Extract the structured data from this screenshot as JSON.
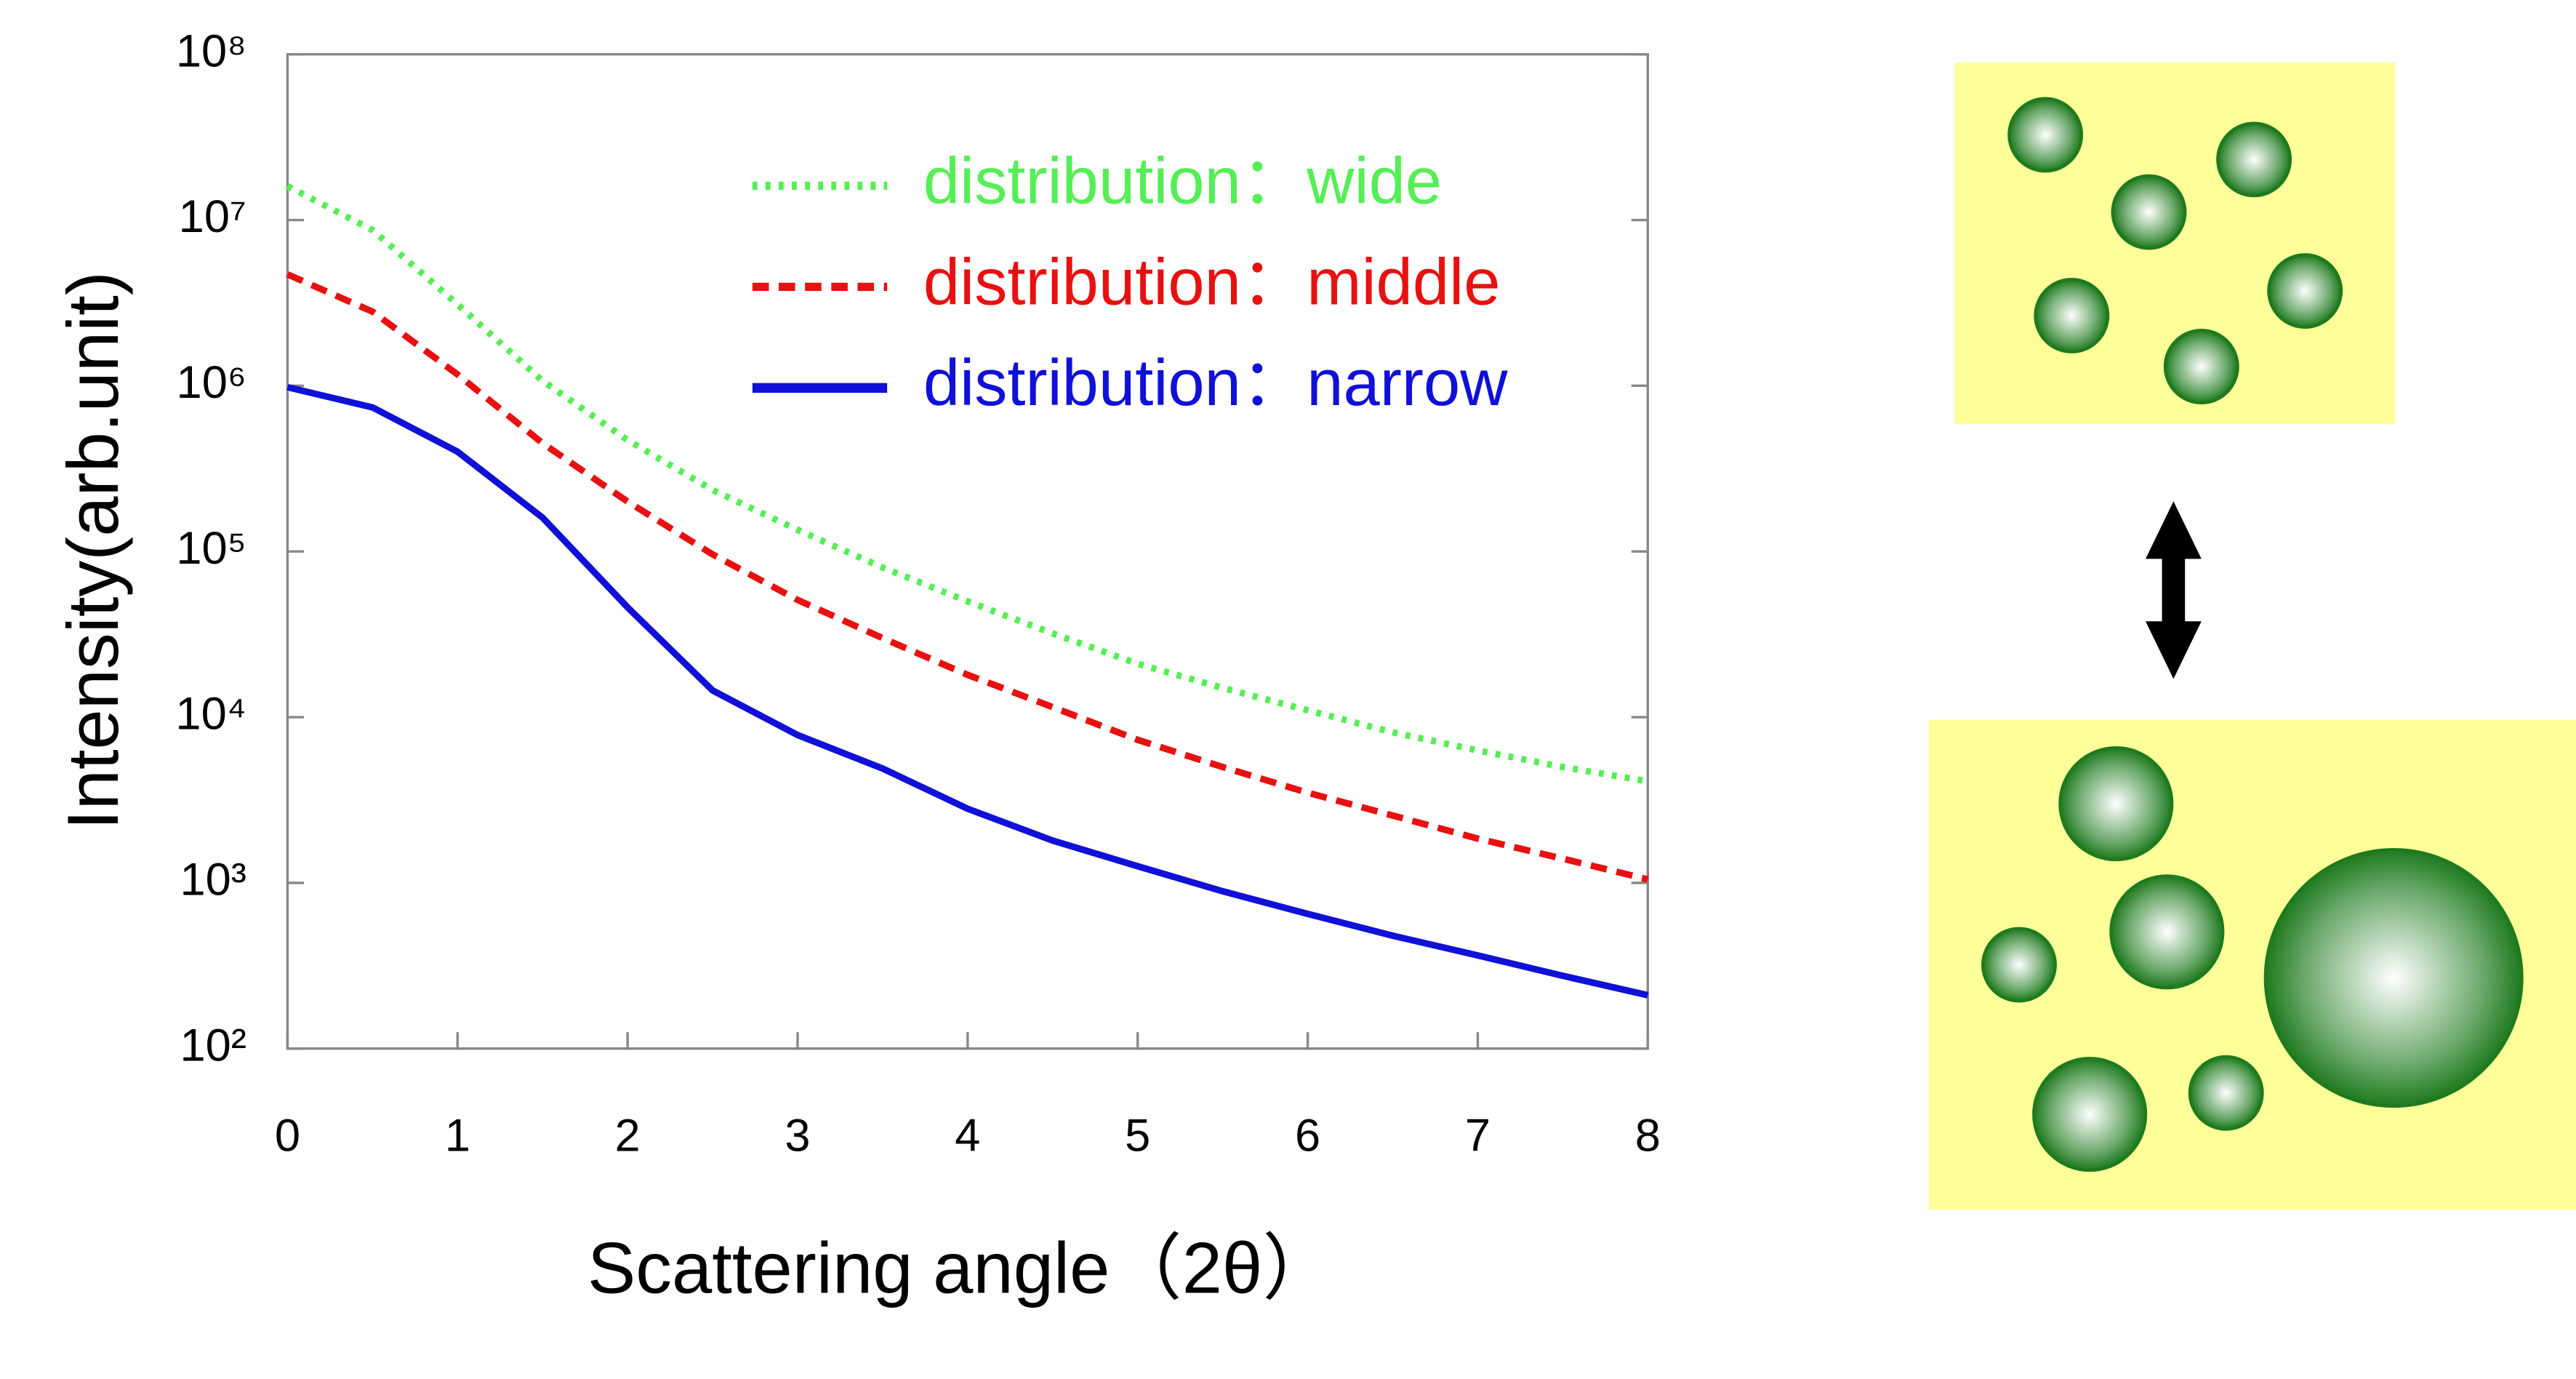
{
  "chart_data": {
    "type": "line",
    "x_label": "Scattering angle（2θ）",
    "y_label": "Intensity(arb.unit)",
    "x": [
      0,
      0.5,
      1,
      1.5,
      2,
      2.5,
      3,
      3.5,
      4,
      4.5,
      5,
      5.5,
      6,
      6.5,
      7,
      7.5,
      8
    ],
    "series": [
      {
        "name": "distribution：wide",
        "color": "#55ee55",
        "style": "dotted",
        "values": [
          16000000,
          8700000,
          3100000,
          1070000,
          470000,
          235000,
          135000,
          80000,
          50000,
          32000,
          21000,
          15000,
          11000,
          8100,
          6300,
          5000,
          4100
        ]
      },
      {
        "name": "distribution：middle",
        "color": "#e81010",
        "style": "dashed",
        "values": [
          4700000,
          2800000,
          1170000,
          450000,
          200000,
          96000,
          51000,
          30000,
          18000,
          11500,
          7300,
          5000,
          3500,
          2550,
          1850,
          1400,
          1050
        ]
      },
      {
        "name": "distribution：narrow",
        "color": "#1010d8",
        "style": "solid",
        "values": [
          980000,
          740000,
          400000,
          160000,
          46000,
          14500,
          7800,
          4900,
          2800,
          1800,
          1260,
          890,
          650,
          480,
          365,
          275,
          210
        ]
      }
    ],
    "xlim": [
      0,
      8
    ],
    "xticks": [
      0,
      1,
      2,
      3,
      4,
      5,
      6,
      7,
      8
    ],
    "ylim": [
      100,
      100000000
    ],
    "log_y": true,
    "yticks": [
      {
        "value": 100,
        "label": "10²"
      },
      {
        "value": 1000,
        "label": "10³"
      },
      {
        "value": 10000,
        "label": "10⁴"
      },
      {
        "value": 100000,
        "label": "10⁵"
      },
      {
        "value": 1000000,
        "label": "10⁶"
      },
      {
        "value": 10000000,
        "label": "10⁷"
      },
      {
        "value": 100000000,
        "label": "10⁸"
      }
    ],
    "grid": false,
    "legend": "upper right"
  }
}
